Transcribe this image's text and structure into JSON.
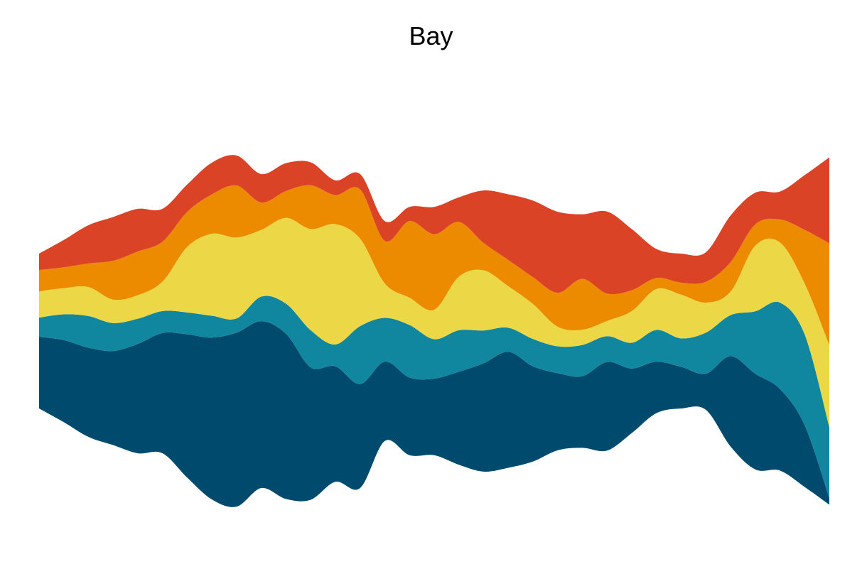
{
  "chart_data": {
    "type": "area",
    "subtype": "streamgraph",
    "title": "Bay",
    "xlabel": "",
    "ylabel": "",
    "axes_visible": false,
    "grid": false,
    "legend": "none",
    "x": [
      0,
      1,
      2,
      3,
      4,
      5,
      6,
      7,
      8,
      9,
      10,
      11,
      12,
      13,
      14,
      15,
      16,
      17,
      18,
      19,
      20,
      21,
      22,
      23,
      24,
      25,
      26,
      27,
      28,
      29,
      30,
      31,
      32
    ],
    "series": [
      {
        "color": "#004a6e",
        "values": [
          131,
          150,
          163,
          172,
          200,
          220,
          262,
          296,
          318,
          305,
          302,
          242,
          211,
          190,
          145,
          142,
          140,
          170,
          198,
          212,
          174,
          141,
          131,
          162,
          118,
          94,
          76,
          66,
          165,
          175,
          149,
          113,
          12
        ]
      },
      {
        "color": "#11869f",
        "values": [
          35,
          47,
          58,
          51,
          46,
          40,
          40,
          40,
          26,
          45,
          55,
          68,
          40,
          106,
          80,
          96,
          72,
          76,
          60,
          44,
          50,
          49,
          57,
          47,
          47,
          58,
          52,
          75,
          75,
          114,
          158,
          166,
          130
        ]
      },
      {
        "color": "#ecd747",
        "values": [
          48,
          48,
          53,
          43,
          43,
          54,
          120,
          150,
          148,
          122,
          157,
          185,
          220,
          160,
          63,
          50,
          54,
          98,
          110,
          76,
          64,
          36,
          28,
          28,
          58,
          75,
          80,
          55,
          43,
          120,
          110,
          93,
          150
        ]
      },
      {
        "color": "#ec8a00",
        "values": [
          39,
          38,
          43,
          71,
          80,
          73,
          64,
          72,
          95,
          50,
          49,
          80,
          53,
          90,
          78,
          140,
          138,
          100,
          50,
          48,
          49,
          62,
          93,
          50,
          38,
          20,
          22,
          38,
          54,
          39,
          42,
          98,
          186
        ]
      },
      {
        "color": "#db4326",
        "values": [
          30,
          50,
          70,
          80,
          78,
          60,
          50,
          58,
          55,
          52,
          51,
          42,
          27,
          28,
          36,
          26,
          50,
          45,
          96,
          120,
          140,
          148,
          118,
          150,
          112,
          53,
          53,
          54,
          85,
          58,
          51,
          100,
          157
        ]
      }
    ]
  }
}
